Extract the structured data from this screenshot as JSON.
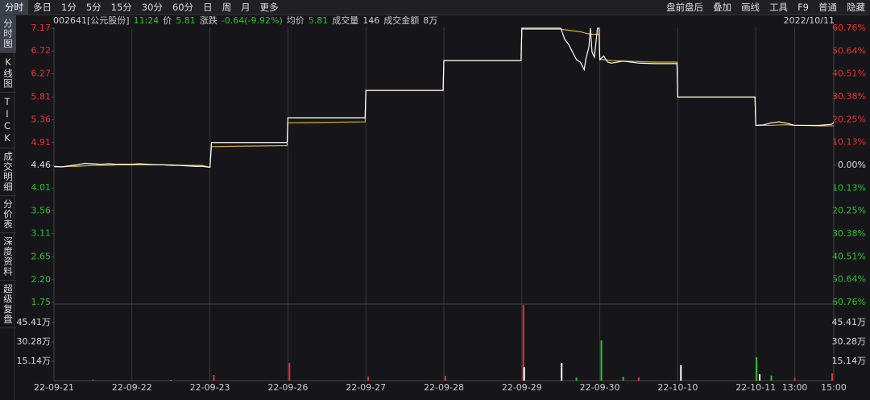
{
  "toolbar": {
    "left": [
      "分时",
      "多日",
      "1分",
      "5分",
      "15分",
      "30分",
      "60分",
      "日",
      "周",
      "月",
      "更多"
    ],
    "right": [
      "盘前盘后",
      "叠加",
      "画线",
      "工具",
      "F9",
      "普通",
      "隐藏"
    ]
  },
  "sidebar": [
    "分时图",
    "K线图",
    "TICK",
    "成交明细",
    "分价表",
    "深度资料",
    "超级复盘"
  ],
  "info": {
    "code": "002641[公元股份]",
    "time": "11:24",
    "price_label": "价",
    "price": "5.81",
    "change_label": "涨跌",
    "change": "-0.64(-9.92%)",
    "avg_label": "均价",
    "avg": "5.81",
    "volume_label": "成交量",
    "volume": "146",
    "amount_label": "成交金额",
    "amount": "8万",
    "date": "2022/10/11"
  },
  "chart_data": [
    {
      "type": "line",
      "grid": "x",
      "x": [
        0,
        0.1,
        0.2,
        0.3,
        0.4,
        0.5,
        0.6,
        0.7,
        0.8,
        0.9,
        1.0,
        1.1,
        1.2,
        1.3,
        1.4,
        1.5,
        1.6,
        1.7,
        1.8,
        1.9,
        2.0,
        2.02,
        2.5,
        2.99,
        3.0,
        3.99,
        4.0,
        4.99,
        5.0,
        5.99,
        6.0,
        6.5,
        6.55,
        6.6,
        6.65,
        6.7,
        6.75,
        6.8,
        6.82,
        6.86,
        6.88,
        6.9,
        6.93,
        6.97,
        6.99,
        7.0,
        7.05,
        7.1,
        7.15,
        7.3,
        7.5,
        7.7,
        7.99,
        8.0,
        8.99,
        9.0,
        9.1,
        9.2,
        9.3,
        9.4,
        9.5,
        9.6,
        9.8,
        9.97,
        10.0
      ],
      "series": [
        {
          "name": "价",
          "color": "#ffffff",
          "values": [
            4.44,
            4.43,
            4.45,
            4.47,
            4.5,
            4.49,
            4.48,
            4.49,
            4.48,
            4.48,
            4.48,
            4.49,
            4.48,
            4.47,
            4.47,
            4.46,
            4.46,
            4.45,
            4.44,
            4.44,
            4.42,
            4.91,
            4.91,
            4.91,
            5.4,
            5.4,
            5.94,
            5.94,
            6.53,
            6.53,
            7.17,
            7.17,
            6.95,
            6.85,
            6.7,
            6.55,
            6.5,
            6.35,
            6.55,
            6.8,
            7.17,
            6.7,
            6.6,
            7.17,
            7.17,
            6.55,
            6.62,
            6.5,
            6.48,
            6.52,
            6.48,
            6.47,
            6.47,
            5.81,
            5.81,
            5.25,
            5.26,
            5.3,
            5.32,
            5.29,
            5.25,
            5.25,
            5.25,
            5.27,
            5.3
          ]
        },
        {
          "name": "均价",
          "color": "#d4b020",
          "values": [
            4.43,
            4.43,
            4.44,
            4.44,
            4.45,
            4.46,
            4.46,
            4.46,
            4.47,
            4.47,
            4.47,
            4.47,
            4.47,
            4.47,
            4.47,
            4.47,
            4.46,
            4.46,
            4.46,
            4.46,
            4.42,
            4.83,
            4.84,
            4.85,
            5.3,
            5.32,
            5.94,
            5.94,
            6.53,
            6.53,
            7.15,
            7.15,
            7.14,
            7.13,
            7.12,
            7.11,
            7.1,
            7.08,
            7.07,
            7.06,
            7.06,
            7.05,
            7.05,
            7.05,
            7.05,
            6.55,
            6.55,
            6.54,
            6.53,
            6.52,
            6.51,
            6.5,
            6.5,
            5.81,
            5.81,
            5.25,
            5.25,
            5.25,
            5.26,
            5.26,
            5.25,
            5.25,
            5.24,
            5.24,
            5.24
          ]
        }
      ],
      "xlim": [
        0,
        10
      ],
      "xticks": [
        {
          "value": 0,
          "label": "22-09-21"
        },
        {
          "value": 1,
          "label": "22-09-22"
        },
        {
          "value": 2,
          "label": "22-09-23"
        },
        {
          "value": 3,
          "label": "22-09-26"
        },
        {
          "value": 4,
          "label": "22-09-27"
        },
        {
          "value": 5,
          "label": "22-09-28"
        },
        {
          "value": 6,
          "label": "22-09-29"
        },
        {
          "value": 7,
          "label": "22-09-30"
        },
        {
          "value": 8,
          "label": "22-10-10"
        },
        {
          "value": 9,
          "label": "22-10-11"
        },
        {
          "value": 9.5,
          "label": "13:00"
        },
        {
          "value": 10,
          "label": "15:00"
        }
      ],
      "ylim": [
        1.75,
        7.17
      ],
      "yticks": [
        7.17,
        6.72,
        6.27,
        5.81,
        5.36,
        4.91,
        4.46,
        4.01,
        3.56,
        3.11,
        2.65,
        "2.20",
        1.75
      ],
      "y2lim": [
        -60.76,
        60.76
      ],
      "y2ticks": [
        {
          "value": 60.76,
          "label": "60.76%"
        },
        {
          "value": 50.64,
          "label": "50.64%"
        },
        {
          "value": 40.51,
          "label": "40.51%"
        },
        {
          "value": 30.38,
          "label": "30.38%"
        },
        {
          "value": 20.25,
          "label": "20.25%"
        },
        {
          "value": 10.13,
          "label": "10.13%"
        },
        {
          "value": 0,
          "label": "0.00%"
        },
        {
          "value": -10.13,
          "label": "10.13%"
        },
        {
          "value": -20.25,
          "label": "20.25%"
        },
        {
          "value": -30.38,
          "label": "30.38%"
        },
        {
          "value": -40.51,
          "label": "40.51%"
        },
        {
          "value": -50.64,
          "label": "50.64%"
        },
        {
          "value": -60.76,
          "label": "60.76%"
        }
      ]
    },
    {
      "type": "bar",
      "xlim": [
        0,
        10
      ],
      "ylim": [
        0,
        59.3
      ],
      "yticks": [
        {
          "value": 45.41,
          "label": "45.41万"
        },
        {
          "value": 30.28,
          "label": "30.28万"
        },
        {
          "value": 15.14,
          "label": "15.14万"
        }
      ],
      "series": [
        {
          "color": "#e83030",
          "x": [
            0.5,
            2.05,
            3.02,
            4.03,
            5.02,
            6.02,
            7.5,
            9.5,
            9.98
          ],
          "values": [
            0.8,
            4.4,
            13.9,
            3.2,
            3.8,
            59.3,
            2.5,
            2.2,
            5.7
          ]
        },
        {
          "color": "#2fbf2f",
          "x": [
            1.5,
            6.7,
            7.02,
            7.3,
            9.01,
            9.2
          ],
          "values": [
            0.6,
            2.4,
            31.5,
            3.0,
            18.3,
            4.0
          ]
        },
        {
          "color": "#ffffff",
          "x": [
            6.03,
            6.51,
            8.04,
            9.05
          ],
          "values": [
            10.7,
            13.9,
            12.0,
            5.0
          ]
        }
      ]
    }
  ]
}
